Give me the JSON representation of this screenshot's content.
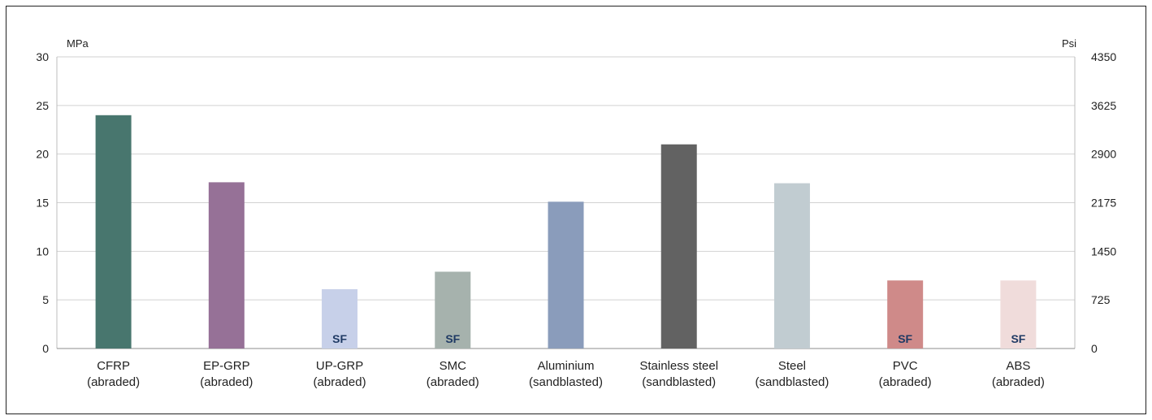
{
  "chart_data": {
    "type": "bar",
    "left_unit": "MPa",
    "right_unit": "Psi",
    "ylim": [
      0,
      30
    ],
    "left_ticks": [
      "0",
      "5",
      "10",
      "15",
      "20",
      "25",
      "30"
    ],
    "right_ticks": [
      "0",
      "725",
      "1450",
      "2175",
      "2900",
      "3625",
      "4350"
    ],
    "grid": true,
    "categories": [
      {
        "line1": "CFRP",
        "line2": "(abraded)"
      },
      {
        "line1": "EP-GRP",
        "line2": "(abraded)"
      },
      {
        "line1": "UP-GRP",
        "line2": "(abraded)"
      },
      {
        "line1": "SMC",
        "line2": "(abraded)"
      },
      {
        "line1": "Aluminium",
        "line2": "(sandblasted)"
      },
      {
        "line1": "Stainless steel",
        "line2": "(sandblasted)"
      },
      {
        "line1": "Steel",
        "line2": "(sandblasted)"
      },
      {
        "line1": "PVC",
        "line2": "(abraded)"
      },
      {
        "line1": "ABS",
        "line2": "(abraded)"
      }
    ],
    "values": [
      24,
      17.1,
      6.1,
      7.9,
      15.1,
      21,
      17,
      7,
      7
    ],
    "colors": [
      "#48766e",
      "#967197",
      "#c7d0e9",
      "#a6b2ad",
      "#8a9cbb",
      "#626262",
      "#c1ccd1",
      "#cf8a89",
      "#f0dcdb"
    ],
    "bar_labels": [
      "",
      "",
      "SF",
      "SF",
      "",
      "",
      "",
      "SF",
      "SF"
    ]
  }
}
